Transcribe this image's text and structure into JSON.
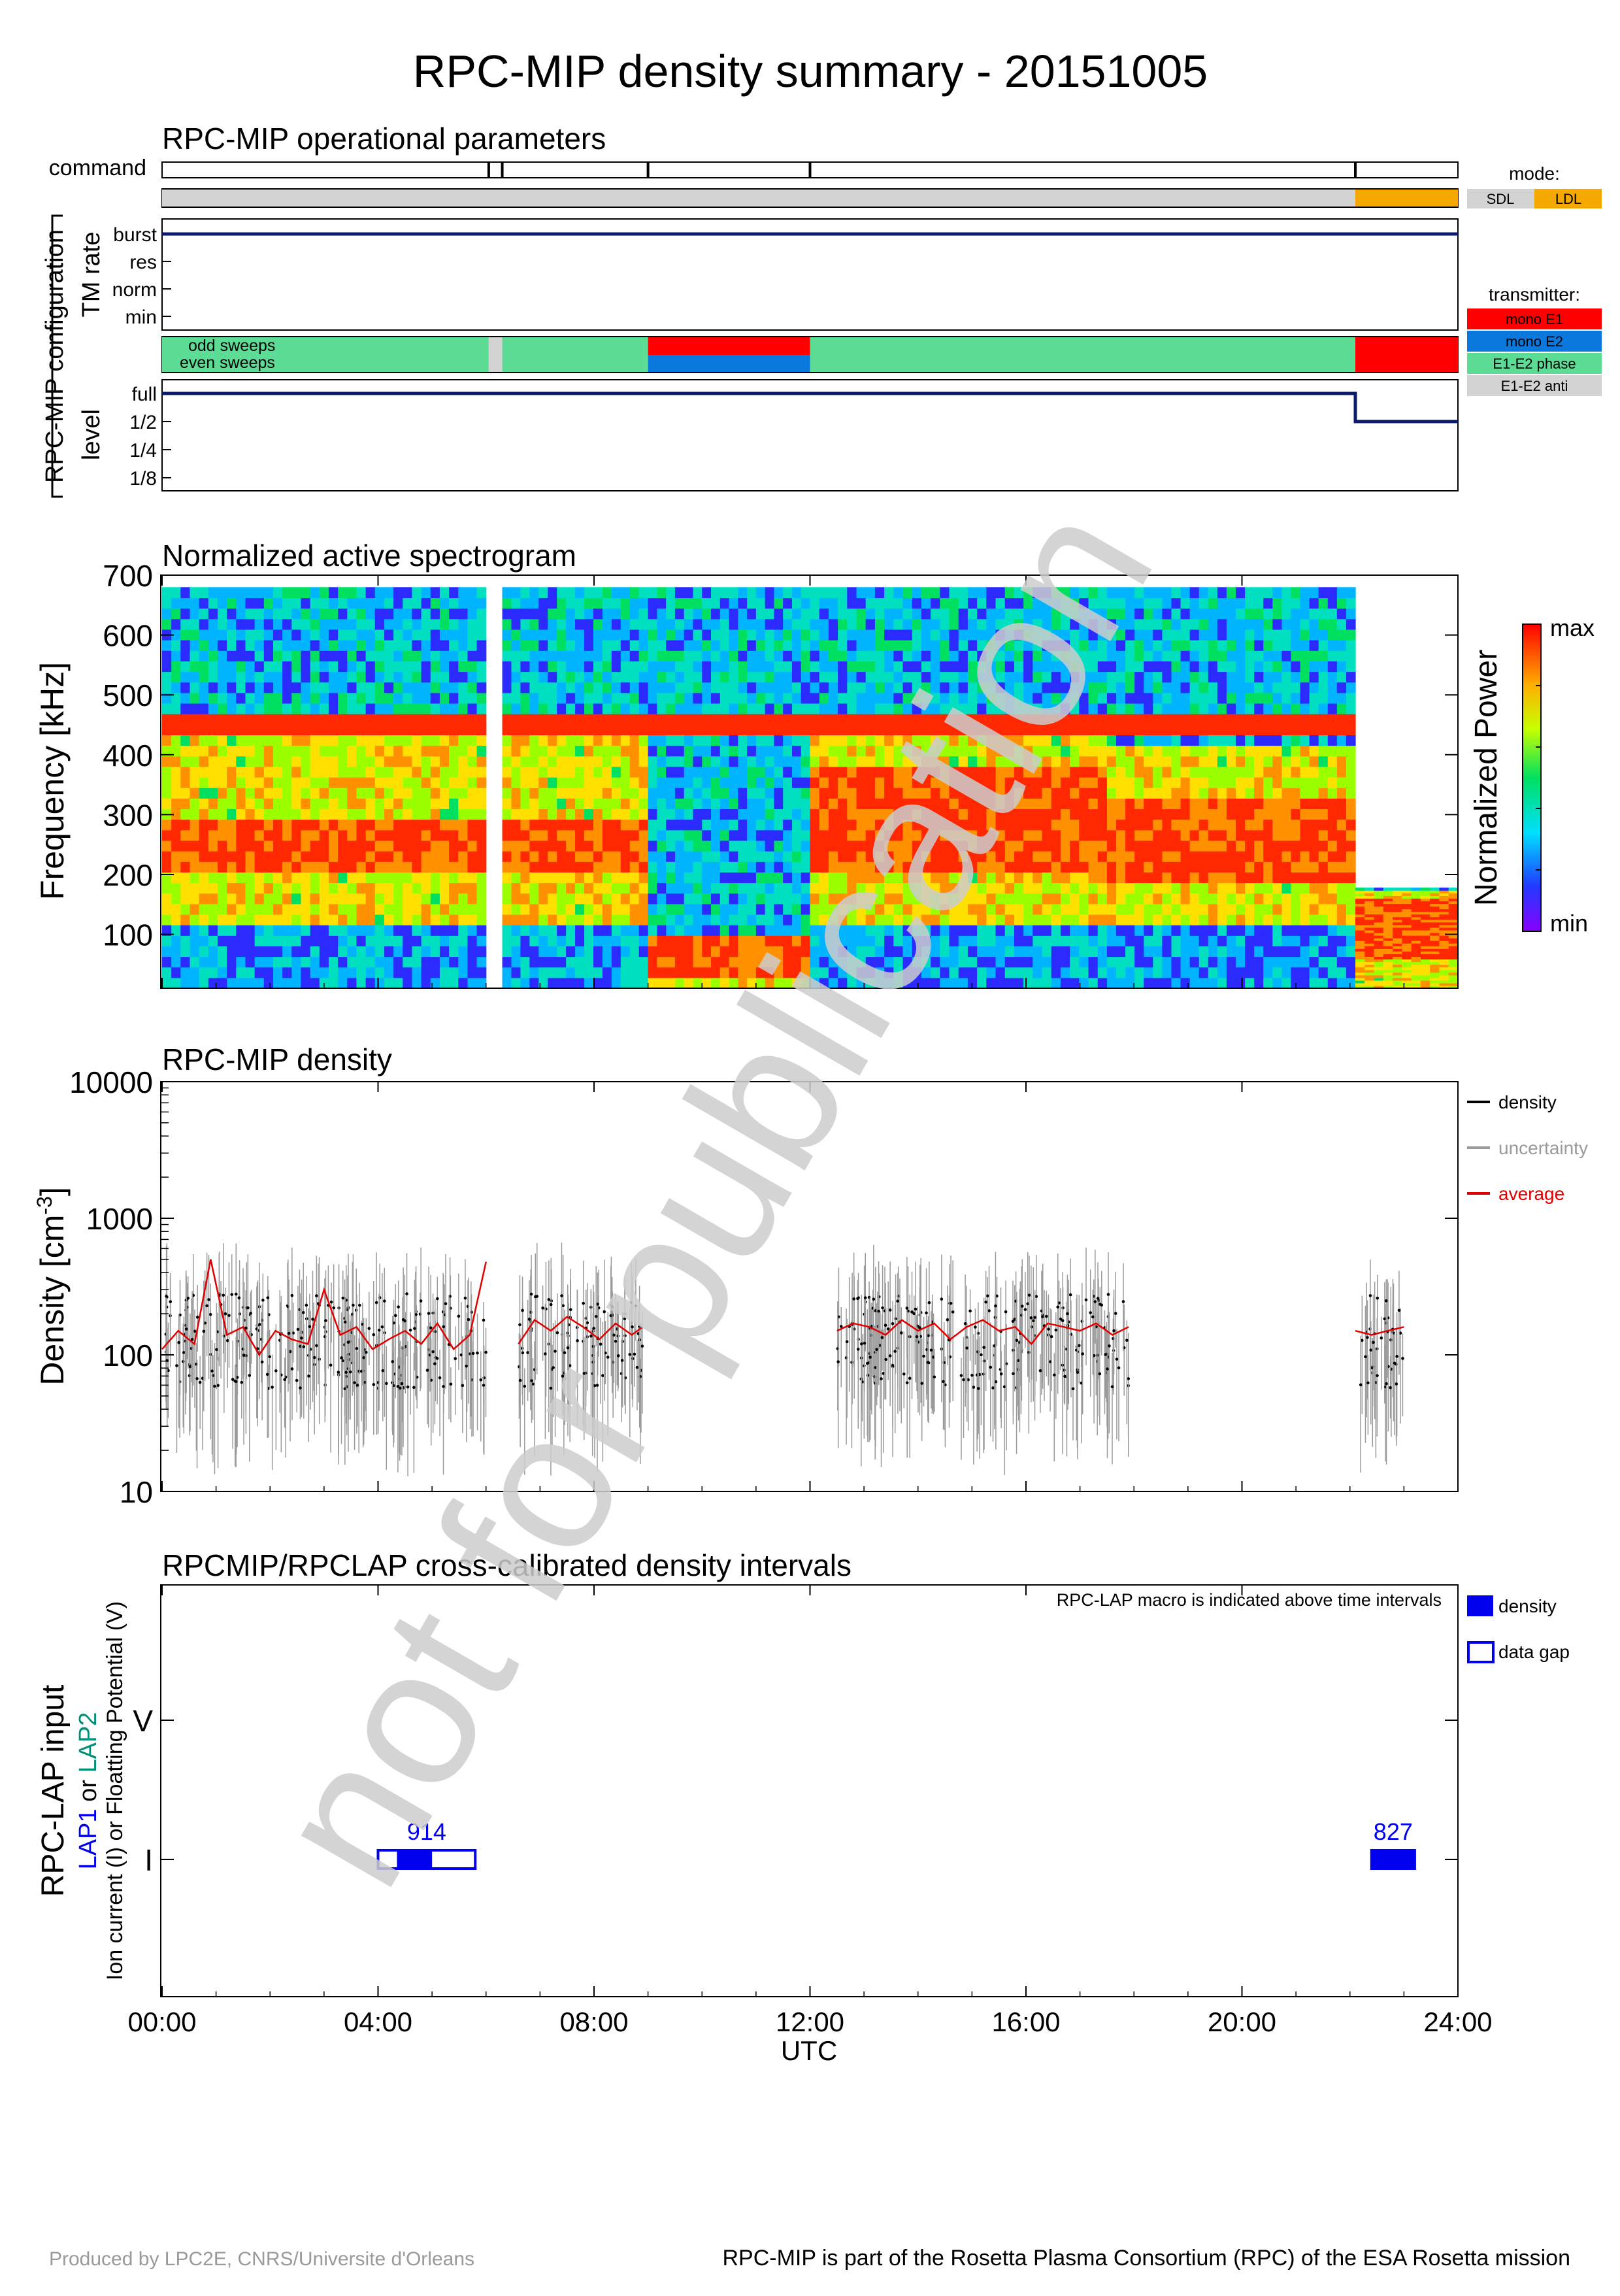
{
  "page": {
    "title": "RPC-MIP density summary - 20151005",
    "watermark": "not for publication",
    "footer_left": "Produced by LPC2E, CNRS/Universite d'Orleans",
    "footer_right": "RPC-MIP is part of the Rosetta Plasma Consortium (RPC) of the ESA Rosetta mission"
  },
  "time_axis": {
    "label": "UTC",
    "ticks": [
      "00:00",
      "04:00",
      "08:00",
      "12:00",
      "16:00",
      "20:00",
      "24:00"
    ],
    "range_hours": [
      0,
      24
    ]
  },
  "colors": {
    "navy": "#0a1a6e",
    "grey_mode": "#d3d3d3",
    "ldl": "#f5a800",
    "mono_e1": "#ff0000",
    "mono_e2": "#0a78dc",
    "e1e2_phase": "#5ddc96",
    "e1e2_anti": "#d3d3d3",
    "density_red": "#e00000",
    "lap_blue": "#0000ee",
    "lap_green": "#00907a"
  },
  "ops_panel": {
    "title": "RPC-MIP operational parameters",
    "group_label": "RPC-MIP configuration",
    "command_label": "command",
    "command_times_h": [
      6.05,
      6.3,
      9.0,
      12.0,
      22.1
    ],
    "mode_segments": [
      {
        "start_h": 0,
        "end_h": 22.1,
        "mode": "SDL"
      },
      {
        "start_h": 22.1,
        "end_h": 24,
        "mode": "LDL"
      }
    ],
    "tm_rate_label": "TM rate",
    "tm_rate_levels": [
      "burst",
      "res",
      "norm",
      "min"
    ],
    "tm_rate_value": "burst",
    "sweep_labels": {
      "odd": "odd sweeps",
      "even": "even sweeps"
    },
    "odd_sweeps": [
      {
        "start_h": 0,
        "end_h": 6.05,
        "mode": "E1-E2 phase"
      },
      {
        "start_h": 6.05,
        "end_h": 6.3,
        "mode": "E1-E2 anti"
      },
      {
        "start_h": 6.3,
        "end_h": 9.0,
        "mode": "E1-E2 phase"
      },
      {
        "start_h": 9.0,
        "end_h": 12.0,
        "mode": "mono E1"
      },
      {
        "start_h": 12.0,
        "end_h": 22.1,
        "mode": "E1-E2 phase"
      },
      {
        "start_h": 22.1,
        "end_h": 24,
        "mode": "mono E1"
      }
    ],
    "even_sweeps": [
      {
        "start_h": 0,
        "end_h": 6.05,
        "mode": "E1-E2 phase"
      },
      {
        "start_h": 6.05,
        "end_h": 6.3,
        "mode": "E1-E2 anti"
      },
      {
        "start_h": 6.3,
        "end_h": 9.0,
        "mode": "E1-E2 phase"
      },
      {
        "start_h": 9.0,
        "end_h": 12.0,
        "mode": "mono E2"
      },
      {
        "start_h": 12.0,
        "end_h": 22.1,
        "mode": "E1-E2 phase"
      },
      {
        "start_h": 22.1,
        "end_h": 24,
        "mode": "mono E1"
      }
    ],
    "level_label": "level",
    "level_levels": [
      "full",
      "1/2",
      "1/4",
      "1/8"
    ],
    "level_segments": [
      {
        "start_h": 0,
        "end_h": 22.1,
        "level": "full"
      },
      {
        "start_h": 22.1,
        "end_h": 24,
        "level": "1/2"
      }
    ],
    "mode_legend": {
      "title": "mode:",
      "items": [
        "SDL",
        "LDL"
      ]
    },
    "transmitter_legend": {
      "title": "transmitter:",
      "items": [
        "mono E1",
        "mono E2",
        "E1-E2 phase",
        "E1-E2 anti"
      ]
    }
  },
  "spectrogram": {
    "title": "Normalized active spectrogram",
    "ylabel": "Frequency [kHz]",
    "yticks": [
      100,
      200,
      300,
      400,
      500,
      600,
      700
    ],
    "ylim": [
      10,
      700
    ],
    "colorbar_label": "Normalized Power",
    "colorbar_max": "max",
    "colorbar_min": "min"
  },
  "density_panel": {
    "title": "RPC-MIP density",
    "ylabel_main": "Density [cm",
    "ylabel_sup": "-3",
    "ylabel_end": "]",
    "yticks": [
      "10",
      "100",
      "1000",
      "10000"
    ],
    "ylim": [
      10,
      10000
    ],
    "legend": [
      {
        "label": "density",
        "color": "#000000"
      },
      {
        "label": "uncertainty",
        "color": "#9a9a9a"
      },
      {
        "label": "average",
        "color": "#e00000"
      }
    ]
  },
  "lap_panel": {
    "title": "RPCMIP/RPCLAP cross-calibrated density intervals",
    "note": "RPC-LAP macro is indicated above time intervals",
    "ylabel_main": "RPC-LAP input",
    "ylabel_lap1": "LAP1",
    "ylabel_or": " or ",
    "ylabel_lap2": "LAP2",
    "ylabel_sub": "Ion current (I) or Floatting Potential (V)",
    "levels": [
      "V",
      "I"
    ],
    "legend": [
      {
        "label": "density",
        "style": "filled"
      },
      {
        "label": "data gap",
        "style": "open"
      }
    ]
  },
  "chart_data": [
    {
      "type": "timeline",
      "title": "RPC-MIP operational parameters",
      "xlabel": "UTC",
      "xlim": [
        0,
        24
      ],
      "note": "Operational mode (SDL until ~22.1 h, LDL after), TM rate burst all day, transmitter mode E1-E2 phase except mono E1/E2 09-12 h and mono E1 after 22.1 h, level full until 22.1 h then 1/2"
    },
    {
      "type": "heatmap",
      "title": "Normalized active spectrogram",
      "xlabel": "UTC",
      "ylabel": "Frequency [kHz]",
      "xlim": [
        0,
        24
      ],
      "ylim": [
        10,
        700
      ],
      "segments": [
        {
          "start_h": 0.0,
          "end_h": 6.0,
          "band_khz": [
            120,
            450
          ],
          "peak_khz": [
            200,
            300
          ]
        },
        {
          "start_h": 6.3,
          "end_h": 9.0,
          "band_khz": [
            110,
            460
          ],
          "peak_khz": [
            200,
            300
          ]
        },
        {
          "start_h": 9.0,
          "end_h": 12.0,
          "band_khz": [
            10,
            100
          ],
          "peak_khz": [
            20,
            90
          ]
        },
        {
          "start_h": 12.0,
          "end_h": 17.5,
          "band_khz": [
            120,
            460
          ],
          "peak_khz": [
            200,
            380
          ]
        },
        {
          "start_h": 17.5,
          "end_h": 22.1,
          "band_khz": [
            110,
            420
          ],
          "peak_khz": [
            180,
            320
          ]
        },
        {
          "start_h": 22.1,
          "end_h": 24.0,
          "band_khz": [
            10,
            175
          ],
          "peak_khz": [
            60,
            160
          ]
        }
      ],
      "line_khz": 450
    },
    {
      "type": "scatter",
      "title": "RPC-MIP density",
      "xlabel": "UTC",
      "ylabel": "Density [cm-3]",
      "xlim": [
        0,
        24
      ],
      "ylim": [
        10,
        10000
      ],
      "yscale": "log",
      "series": [
        {
          "name": "average",
          "x": [
            0.0,
            0.3,
            0.6,
            0.9,
            1.2,
            1.5,
            1.8,
            2.1,
            2.4,
            2.7,
            3.0,
            3.3,
            3.6,
            3.9,
            4.2,
            4.5,
            4.8,
            5.1,
            5.4,
            5.7,
            6.0,
            6.6,
            6.9,
            7.2,
            7.5,
            7.8,
            8.1,
            8.4,
            8.7,
            8.9,
            12.5,
            12.8,
            13.1,
            13.4,
            13.7,
            14.0,
            14.3,
            14.6,
            14.9,
            15.2,
            15.5,
            15.8,
            16.1,
            16.4,
            16.7,
            17.0,
            17.3,
            17.6,
            17.9,
            22.1,
            22.4,
            22.7,
            23.0
          ],
          "y": [
            110,
            150,
            120,
            500,
            140,
            160,
            100,
            150,
            130,
            120,
            300,
            140,
            160,
            110,
            130,
            150,
            120,
            170,
            110,
            140,
            480,
            120,
            180,
            150,
            190,
            160,
            130,
            170,
            140,
            160,
            150,
            170,
            160,
            140,
            180,
            150,
            170,
            130,
            160,
            180,
            150,
            160,
            120,
            170,
            160,
            150,
            170,
            140,
            160,
            150,
            140,
            150,
            160
          ]
        }
      ]
    },
    {
      "type": "timeline",
      "title": "RPCMIP/RPCLAP cross-calibrated density intervals",
      "xlabel": "UTC",
      "xlim": [
        0,
        24
      ],
      "series": [
        {
          "macro": "914",
          "input": "I",
          "start_h": 4.0,
          "end_h": 5.8,
          "filled_h": [
            [
              4.35,
              5.0
            ]
          ]
        },
        {
          "macro": "827",
          "input": "I",
          "start_h": 22.4,
          "end_h": 23.2,
          "filled_h": [
            [
              22.4,
              23.2
            ]
          ]
        }
      ]
    }
  ]
}
